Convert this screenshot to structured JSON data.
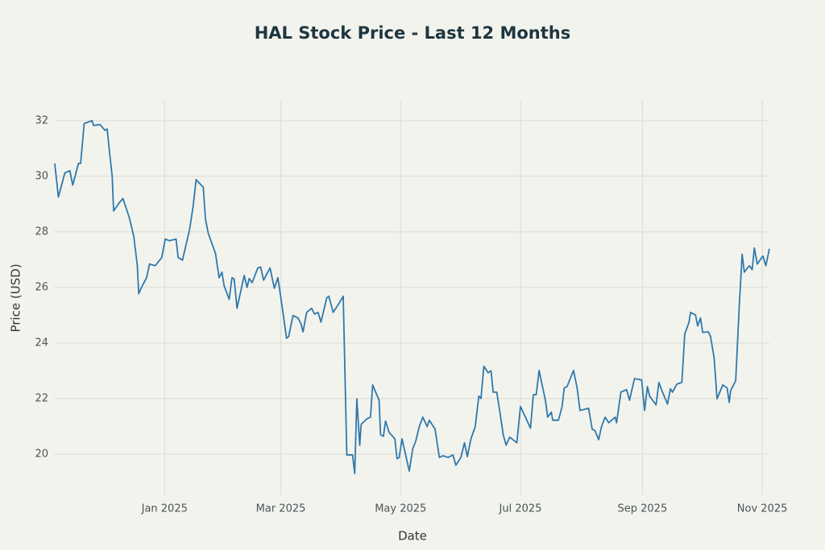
{
  "chart_data": {
    "type": "line",
    "title": "HAL Stock Price - Last 12 Months",
    "x_label": "Date",
    "y_label": "Price (USD)",
    "color": "#2f79ab",
    "grid": true,
    "xlim": [
      2024.847,
      2025.843
    ],
    "ylim": [
      18.52,
      32.72
    ],
    "xticks": [
      {
        "value": 2025.0,
        "label": "Jan 2025"
      },
      {
        "value": 2025.162,
        "label": "Mar 2025"
      },
      {
        "value": 2025.329,
        "label": "May 2025"
      },
      {
        "value": 2025.496,
        "label": "Jul 2025"
      },
      {
        "value": 2025.666,
        "label": "Sep 2025"
      },
      {
        "value": 2025.833,
        "label": "Nov 2025"
      }
    ],
    "yticks": [
      20,
      22,
      24,
      26,
      28,
      30,
      32
    ],
    "x": [
      2024.847,
      2024.852,
      2024.861,
      2024.868,
      2024.872,
      2024.88,
      2024.883,
      2024.888,
      2024.899,
      2024.901,
      2024.91,
      2024.917,
      2024.92,
      2024.924,
      2024.927,
      2024.929,
      2024.937,
      2024.942,
      2024.951,
      2024.957,
      2024.962,
      2024.964,
      2024.969,
      2024.975,
      2024.979,
      2024.987,
      2024.996,
      2025.001,
      2025.007,
      2025.016,
      2025.019,
      2025.025,
      2025.035,
      2025.04,
      2025.044,
      2025.054,
      2025.057,
      2025.061,
      2025.071,
      2025.076,
      2025.08,
      2025.083,
      2025.09,
      2025.094,
      2025.097,
      2025.101,
      2025.111,
      2025.115,
      2025.118,
      2025.122,
      2025.13,
      2025.134,
      2025.138,
      2025.147,
      2025.153,
      2025.158,
      2025.165,
      2025.17,
      2025.173,
      2025.179,
      2025.186,
      2025.19,
      2025.193,
      2025.198,
      2025.205,
      2025.209,
      2025.214,
      2025.218,
      2025.226,
      2025.229,
      2025.235,
      2025.243,
      2025.249,
      2025.254,
      2025.262,
      2025.265,
      2025.268,
      2025.272,
      2025.274,
      2025.282,
      2025.287,
      2025.29,
      2025.299,
      2025.301,
      2025.305,
      2025.308,
      2025.313,
      2025.321,
      2025.324,
      2025.327,
      2025.331,
      2025.336,
      2025.341,
      2025.346,
      2025.35,
      2025.355,
      2025.36,
      2025.366,
      2025.369,
      2025.377,
      2025.383,
      2025.388,
      2025.395,
      2025.402,
      2025.406,
      2025.413,
      2025.418,
      2025.422,
      2025.427,
      2025.433,
      2025.438,
      2025.441,
      2025.445,
      2025.451,
      2025.455,
      2025.458,
      2025.463,
      2025.467,
      2025.472,
      2025.476,
      2025.481,
      2025.491,
      2025.496,
      2025.503,
      2025.51,
      2025.514,
      2025.518,
      2025.522,
      2025.531,
      2025.534,
      2025.539,
      2025.541,
      2025.549,
      2025.554,
      2025.557,
      2025.561,
      2025.57,
      2025.575,
      2025.579,
      2025.591,
      2025.596,
      2025.6,
      2025.605,
      2025.609,
      2025.614,
      2025.619,
      2025.628,
      2025.63,
      2025.636,
      2025.644,
      2025.648,
      2025.655,
      2025.658,
      2025.665,
      2025.669,
      2025.673,
      2025.676,
      2025.685,
      2025.689,
      2025.694,
      2025.701,
      2025.705,
      2025.708,
      2025.714,
      2025.721,
      2025.725,
      2025.731,
      2025.733,
      2025.74,
      2025.743,
      2025.747,
      2025.75,
      2025.758,
      2025.761,
      2025.766,
      2025.77,
      2025.778,
      2025.784,
      2025.787,
      2025.789,
      2025.796,
      2025.801,
      2025.805,
      2025.808,
      2025.815,
      2025.819,
      2025.822,
      2025.826,
      2025.834,
      2025.838,
      2025.843
    ],
    "values": [
      30.46,
      29.25,
      30.12,
      30.2,
      29.68,
      30.46,
      30.46,
      31.9,
      32.0,
      31.83,
      31.86,
      31.65,
      31.7,
      30.7,
      30.0,
      28.75,
      29.05,
      29.2,
      28.5,
      27.85,
      26.8,
      25.77,
      26.06,
      26.35,
      26.84,
      26.78,
      27.07,
      27.74,
      27.68,
      27.74,
      27.07,
      26.98,
      28.1,
      28.96,
      29.88,
      29.6,
      28.46,
      27.94,
      27.22,
      26.35,
      26.55,
      26.06,
      25.57,
      26.35,
      26.3,
      25.25,
      26.43,
      26.0,
      26.32,
      26.17,
      26.7,
      26.73,
      26.26,
      26.7,
      25.97,
      26.35,
      25.1,
      24.17,
      24.23,
      24.99,
      24.9,
      24.7,
      24.4,
      25.1,
      25.25,
      25.04,
      25.1,
      24.75,
      25.62,
      25.68,
      25.1,
      25.42,
      25.68,
      19.97,
      19.97,
      19.3,
      21.99,
      20.32,
      21.07,
      21.27,
      21.33,
      22.49,
      21.94,
      20.7,
      20.64,
      21.19,
      20.78,
      20.55,
      19.83,
      19.88,
      20.55,
      19.97,
      19.39,
      20.2,
      20.46,
      20.99,
      21.33,
      20.99,
      21.22,
      20.9,
      19.88,
      19.94,
      19.88,
      19.97,
      19.6,
      19.88,
      20.41,
      19.91,
      20.55,
      20.99,
      22.09,
      22.0,
      23.16,
      22.93,
      23.0,
      22.23,
      22.23,
      21.57,
      20.7,
      20.32,
      20.61,
      20.41,
      21.71,
      21.33,
      20.93,
      22.14,
      22.14,
      23.01,
      21.91,
      21.33,
      21.51,
      21.22,
      21.22,
      21.71,
      22.38,
      22.43,
      23.01,
      22.38,
      21.57,
      21.65,
      20.9,
      20.84,
      20.52,
      20.99,
      21.33,
      21.13,
      21.33,
      21.13,
      22.23,
      22.32,
      21.94,
      22.72,
      22.7,
      22.67,
      21.57,
      22.43,
      22.09,
      21.77,
      22.58,
      22.23,
      21.8,
      22.35,
      22.23,
      22.52,
      22.58,
      24.32,
      24.75,
      25.1,
      25.01,
      24.61,
      24.9,
      24.38,
      24.4,
      24.23,
      23.45,
      21.99,
      22.49,
      22.38,
      21.86,
      22.29,
      22.64,
      25.33,
      27.19,
      26.55,
      26.78,
      26.64,
      27.42,
      26.84,
      27.13,
      26.78,
      27.39
    ]
  }
}
